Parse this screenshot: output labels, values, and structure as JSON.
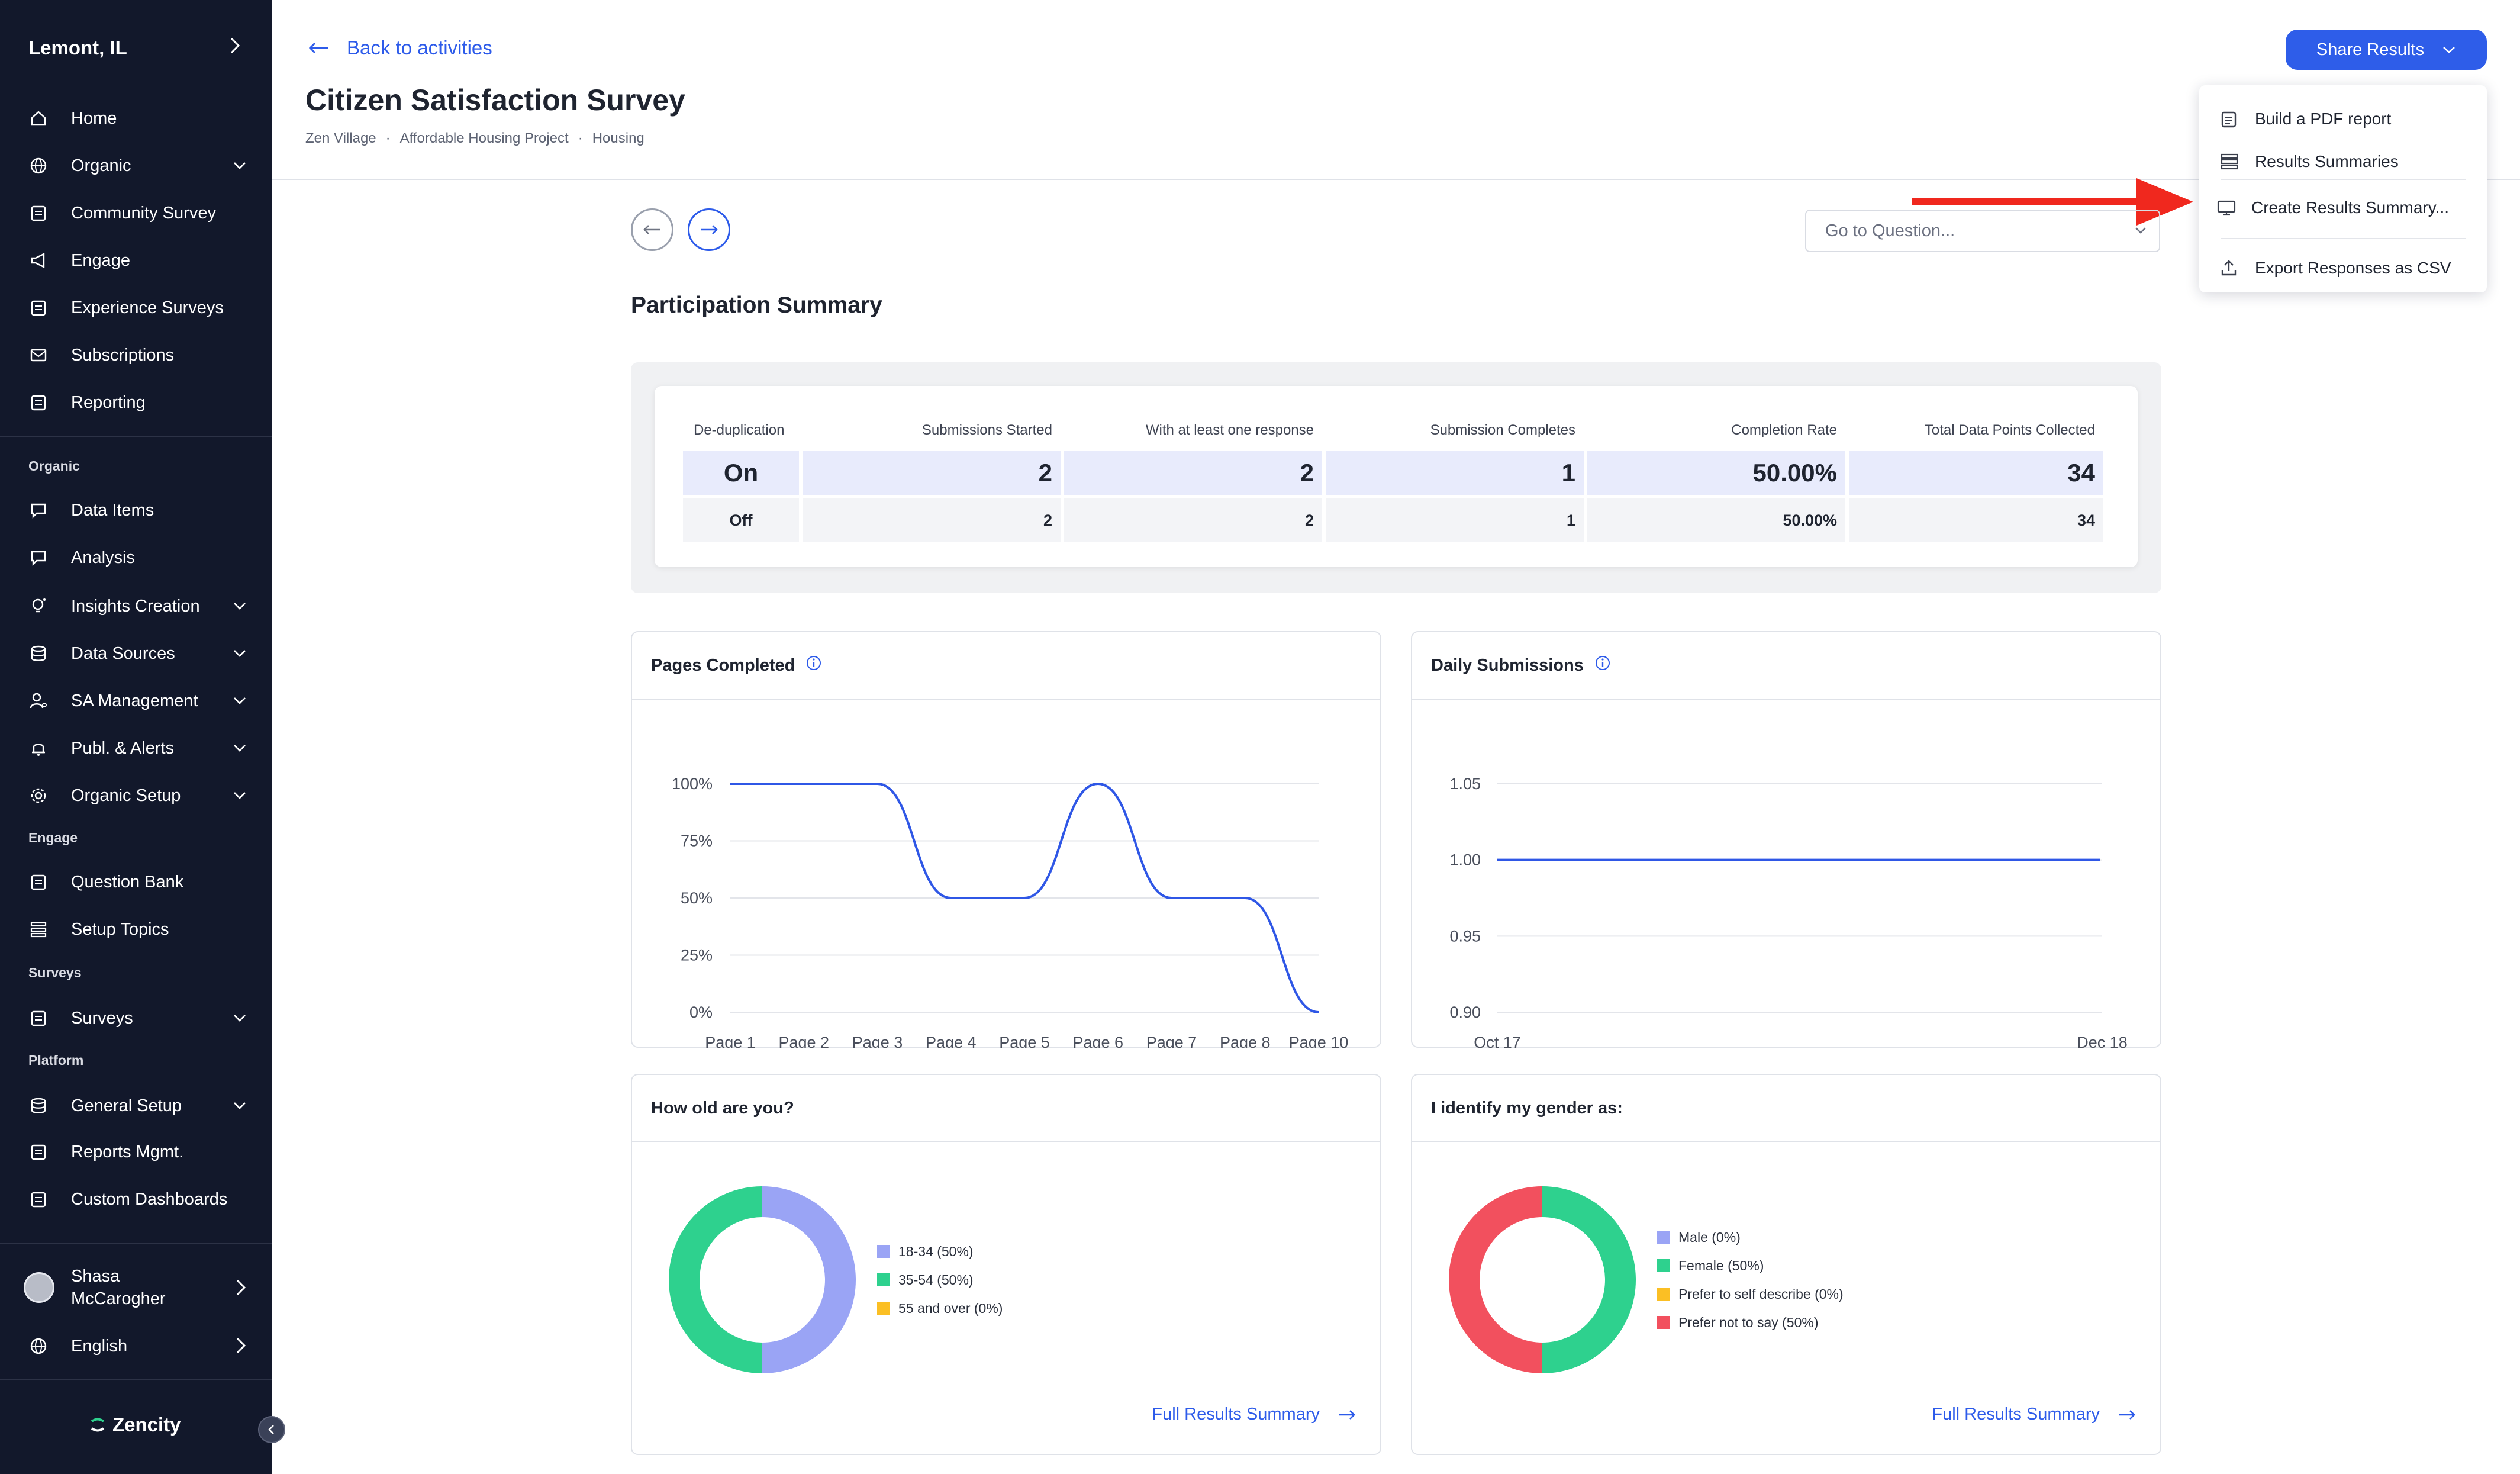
{
  "sidebar": {
    "org_name": "Lemont, IL",
    "nav": [
      {
        "label": "Home",
        "icon": "home-icon",
        "chevron": false
      },
      {
        "label": "Organic",
        "icon": "globe-icon",
        "chevron": true
      },
      {
        "label": "Community Survey",
        "icon": "clipboard-icon",
        "chevron": false
      },
      {
        "label": "Engage",
        "icon": "megaphone-icon",
        "chevron": false
      },
      {
        "label": "Experience Surveys",
        "icon": "clipboard-icon",
        "chevron": false
      },
      {
        "label": "Subscriptions",
        "icon": "mail-icon",
        "chevron": false
      },
      {
        "label": "Reporting",
        "icon": "clipboard-icon",
        "chevron": false
      }
    ],
    "organic_section": "Organic",
    "organic_items": [
      {
        "label": "Data Items",
        "icon": "chat-icon",
        "chevron": false
      },
      {
        "label": "Analysis",
        "icon": "chat-icon",
        "chevron": false
      },
      {
        "label": "Insights Creation",
        "icon": "lightbulb-icon",
        "chevron": true
      },
      {
        "label": "Data Sources",
        "icon": "database-icon",
        "chevron": true
      },
      {
        "label": "SA Management",
        "icon": "user-gear-icon",
        "chevron": true
      },
      {
        "label": "Publ. & Alerts",
        "icon": "bell-icon",
        "chevron": true
      },
      {
        "label": "Organic Setup",
        "icon": "gear-icon",
        "chevron": true
      }
    ],
    "engage_section": "Engage",
    "engage_items": [
      {
        "label": "Question Bank",
        "icon": "clipboard-icon",
        "chevron": false
      },
      {
        "label": "Setup Topics",
        "icon": "list-icon",
        "chevron": false
      }
    ],
    "surveys_section": "Surveys",
    "surveys_items": [
      {
        "label": "Surveys",
        "icon": "clipboard-icon",
        "chevron": true
      }
    ],
    "platform_section": "Platform",
    "platform_items": [
      {
        "label": "General Setup",
        "icon": "database-icon",
        "chevron": true
      },
      {
        "label": "Reports Mgmt.",
        "icon": "clipboard-icon",
        "chevron": false
      },
      {
        "label": "Custom Dashboards",
        "icon": "clipboard-icon",
        "chevron": false
      }
    ],
    "user_name_line1": "Shasa",
    "user_name_line2": "McCarogher",
    "language": "English",
    "brand": "Zencity"
  },
  "header": {
    "back_label": "Back to activities",
    "title": "Citizen Satisfaction Survey",
    "breadcrumbs": [
      "Zen Village",
      "Affordable Housing Project",
      "Housing"
    ],
    "breadcrumb_sep": "·",
    "share_label": "Share Results"
  },
  "share_menu": {
    "items": [
      {
        "label": "Build a PDF report",
        "icon": "clipboard-icon"
      },
      {
        "label": "Results Summaries",
        "icon": "list-icon"
      },
      {
        "label": "Create Results Summary...",
        "icon": "monitor-icon"
      },
      {
        "label": "Export Responses as CSV",
        "icon": "upload-icon"
      }
    ]
  },
  "question_nav": {
    "goto_placeholder": "Go to Question..."
  },
  "participation": {
    "title": "Participation Summary",
    "columns": [
      "De-duplication",
      "Submissions Started",
      "With at least one response",
      "Submission Completes",
      "Completion Rate",
      "Total Data Points Collected"
    ],
    "rows": [
      [
        "On",
        "2",
        "2",
        "1",
        "50.00%",
        "34"
      ],
      [
        "Off",
        "2",
        "2",
        "1",
        "50.00%",
        "34"
      ]
    ]
  },
  "colors": {
    "accent": "#2e5de9",
    "sidebar_bg": "#12182b",
    "line": "#2f57e6",
    "purple": "#9aa4f5",
    "green": "#2ed18e",
    "yellow": "#fbbf24",
    "red": "#f2505e",
    "annotation_arrow": "#f0281e"
  },
  "chart_data": [
    {
      "type": "line",
      "title": "Pages Completed",
      "categories": [
        "Page 1",
        "Page 2",
        "Page 3",
        "Page 4",
        "Page 5",
        "Page 6",
        "Page 7",
        "Page 8",
        "Page 10"
      ],
      "values": [
        100,
        100,
        100,
        50,
        50,
        100,
        50,
        50,
        0
      ],
      "y_ticks": [
        "100%",
        "75%",
        "50%",
        "25%",
        "0%"
      ],
      "ylim": [
        0,
        100
      ],
      "grid": true
    },
    {
      "type": "line",
      "title": "Daily Submissions",
      "x": [
        "Oct 17",
        "Dec 18"
      ],
      "values": [
        1.0,
        1.0
      ],
      "y_ticks": [
        "1.05",
        "1.00",
        "0.95",
        "0.90"
      ],
      "ylim": [
        0.9,
        1.05
      ],
      "grid": true
    },
    {
      "type": "pie",
      "title": "How old are you?",
      "labels": [
        "18-34 (50%)",
        "35-54 (50%)",
        "55 and over (0%)"
      ],
      "values": [
        50,
        50,
        0
      ],
      "colors": [
        "#9aa4f5",
        "#2ed18e",
        "#fbbf24"
      ],
      "legend": "right"
    },
    {
      "type": "pie",
      "title": "I identify my gender as:",
      "labels": [
        "Male (0%)",
        "Female (50%)",
        "Prefer to self describe (0%)",
        "Prefer not to say (50%)"
      ],
      "values": [
        0,
        50,
        0,
        50
      ],
      "colors": [
        "#9aa4f5",
        "#2ed18e",
        "#fbbf24",
        "#f2505e"
      ],
      "legend": "right"
    }
  ],
  "links": {
    "full_results": "Full Results Summary"
  }
}
